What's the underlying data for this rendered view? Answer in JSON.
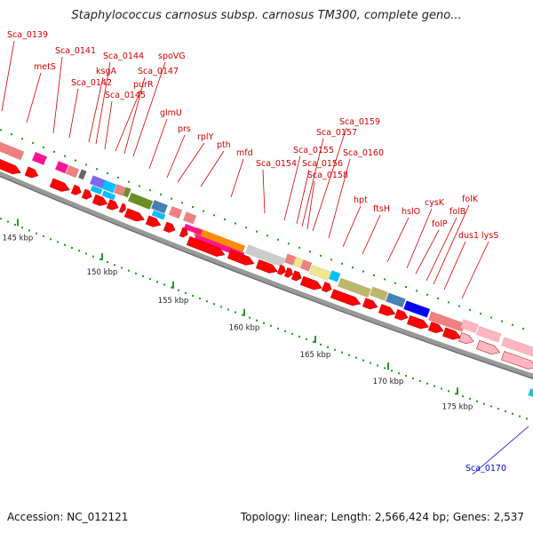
{
  "title": "Staphylococcus carnosus subsp. carnosus TM300, complete geno...",
  "footer": {
    "accession": "Accession: NC_012121",
    "topology": "Topology: linear; Length: 2,566,424 bp; Genes: 2,537"
  },
  "ticks": [
    "145 kbp",
    "150 kbp",
    "155 kbp",
    "160 kbp",
    "165 kbp",
    "170 kbp",
    "175 kbp"
  ],
  "colors": {
    "forward_cds": "#ff0000",
    "reverse_label": "#0000cc",
    "backbone": "#999999",
    "tick": "#229922"
  },
  "genes": [
    {
      "name": "Sca_0139",
      "strand": "top"
    },
    {
      "name": "metS",
      "strand": "top"
    },
    {
      "name": "Sca_0141",
      "strand": "top"
    },
    {
      "name": "Sca_0142",
      "strand": "top"
    },
    {
      "name": "ksgA",
      "strand": "top"
    },
    {
      "name": "Sca_0144",
      "strand": "top"
    },
    {
      "name": "Sca_0145",
      "strand": "top"
    },
    {
      "name": "purR",
      "strand": "top"
    },
    {
      "name": "Sca_0147",
      "strand": "top"
    },
    {
      "name": "spoVG",
      "strand": "top"
    },
    {
      "name": "glmU",
      "strand": "top"
    },
    {
      "name": "prs",
      "strand": "top"
    },
    {
      "name": "rplY",
      "strand": "top"
    },
    {
      "name": "pth",
      "strand": "top"
    },
    {
      "name": "mfd",
      "strand": "top"
    },
    {
      "name": "Sca_0154",
      "strand": "top"
    },
    {
      "name": "Sca_0155",
      "strand": "top"
    },
    {
      "name": "Sca_0156",
      "strand": "top"
    },
    {
      "name": "Sca_0157",
      "strand": "top"
    },
    {
      "name": "Sca_0158",
      "strand": "top"
    },
    {
      "name": "Sca_0159",
      "strand": "top"
    },
    {
      "name": "Sca_0160",
      "strand": "top"
    },
    {
      "name": "hpt",
      "strand": "top"
    },
    {
      "name": "ftsH",
      "strand": "top"
    },
    {
      "name": "hslO",
      "strand": "top"
    },
    {
      "name": "cysK",
      "strand": "top"
    },
    {
      "name": "folP",
      "strand": "top"
    },
    {
      "name": "folB",
      "strand": "top"
    },
    {
      "name": "folK",
      "strand": "top"
    },
    {
      "name": "dus1",
      "strand": "top"
    },
    {
      "name": "lysS",
      "strand": "top"
    },
    {
      "name": "Sca_0170",
      "strand": "bottom"
    }
  ]
}
